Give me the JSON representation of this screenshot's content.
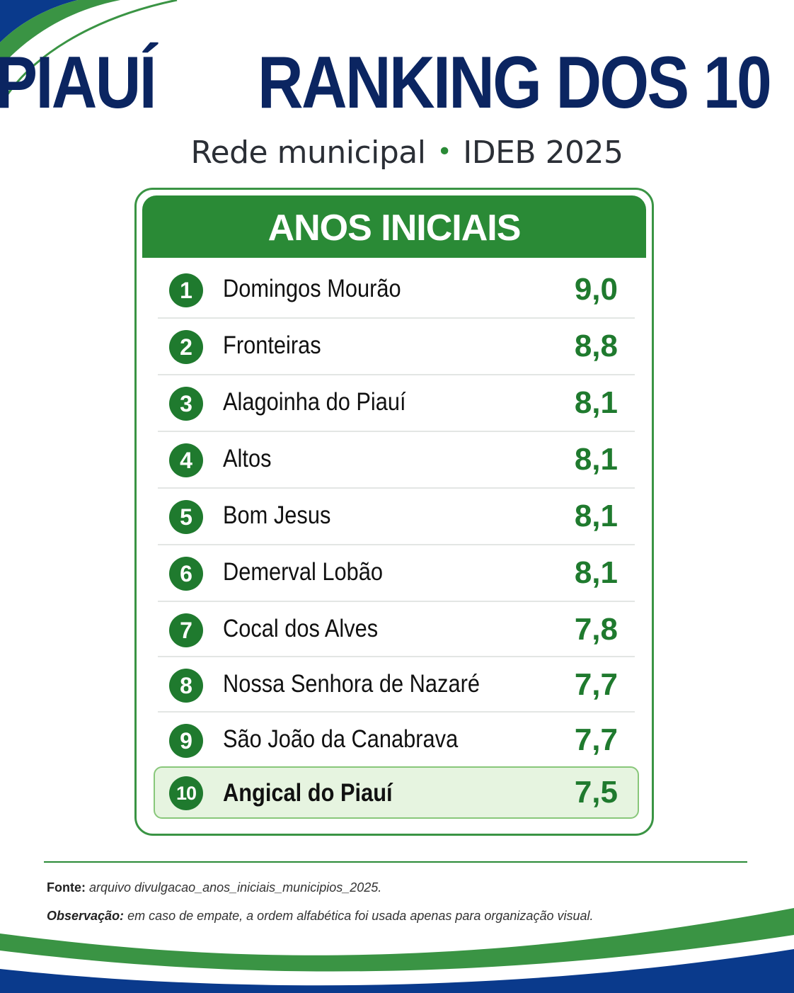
{
  "title": {
    "left": "PIAUÍ",
    "right": "RANKING DOS 10"
  },
  "subtitle": {
    "left": "Rede municipal",
    "separator": "•",
    "right": "IDEB 2025"
  },
  "table": {
    "heading": "ANOS INICIAIS",
    "rows": [
      {
        "rank": "1",
        "name": "Domingos Mourão",
        "score": "9,0"
      },
      {
        "rank": "2",
        "name": "Fronteiras",
        "score": "8,8"
      },
      {
        "rank": "3",
        "name": "Alagoinha do Piauí",
        "score": "8,1"
      },
      {
        "rank": "4",
        "name": "Altos",
        "score": "8,1"
      },
      {
        "rank": "5",
        "name": "Bom Jesus",
        "score": "8,1"
      },
      {
        "rank": "6",
        "name": "Demerval Lobão",
        "score": "8,1"
      },
      {
        "rank": "7",
        "name": "Cocal dos Alves",
        "score": "7,8"
      },
      {
        "rank": "8",
        "name": "Nossa Senhora de Nazaré",
        "score": "7,7"
      },
      {
        "rank": "9",
        "name": "São João da Canabrava",
        "score": "7,7"
      },
      {
        "rank": "10",
        "name": "Angical do Piauí",
        "score": "7,5"
      }
    ]
  },
  "footer": {
    "source_label": "Fonte:",
    "source_text": "arquivo divulgacao_anos_iniciais_municipios_2025.",
    "note_label": "Observação:",
    "note_text": "em caso de empate, a ordem alfabética foi usada apenas para organização visual."
  },
  "colors": {
    "navy": "#0b2561",
    "green": "#2a8a36",
    "dark_green": "#1f7a2e",
    "highlight": "#e6f4e0",
    "blue": "#0a3a8c"
  }
}
